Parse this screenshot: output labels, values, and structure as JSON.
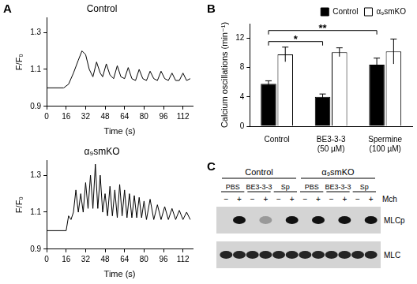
{
  "panel_labels": [
    "A",
    "B",
    "C"
  ],
  "chart_data": [
    {
      "type": "line",
      "title": "Control",
      "x_label": "Time (s)",
      "y_label": "F/F₀",
      "x": [
        0,
        14,
        18,
        22,
        26,
        29,
        32,
        35,
        38,
        41,
        44,
        46,
        49,
        52,
        55,
        58,
        61,
        64,
        67,
        70,
        73,
        76,
        79,
        82,
        85,
        88,
        91,
        94,
        97,
        100,
        103,
        106,
        109,
        112,
        115,
        118
      ],
      "series": [
        {
          "color": "#000000",
          "values": [
            1.0,
            1.0,
            1.02,
            1.08,
            1.15,
            1.2,
            1.18,
            1.1,
            1.06,
            1.14,
            1.08,
            1.06,
            1.13,
            1.07,
            1.05,
            1.12,
            1.06,
            1.05,
            1.11,
            1.05,
            1.04,
            1.1,
            1.05,
            1.04,
            1.09,
            1.05,
            1.04,
            1.09,
            1.05,
            1.04,
            1.08,
            1.04,
            1.04,
            1.08,
            1.04,
            1.05
          ]
        }
      ],
      "xlim": [
        0,
        120
      ],
      "xticks": [
        0,
        16,
        32,
        48,
        64,
        80,
        96,
        112
      ],
      "ylim": [
        0.9,
        1.38
      ],
      "yticks": [
        0.9,
        1.1,
        1.3
      ],
      "grid": false
    },
    {
      "type": "line",
      "title": "α₉smKO",
      "x_label": "Time (s)",
      "y_label": "F/F₀",
      "x": [
        0,
        16,
        18,
        20,
        22,
        24,
        26,
        28,
        30,
        32,
        34,
        36,
        38,
        40,
        42,
        44,
        46,
        48,
        50,
        52,
        54,
        56,
        58,
        60,
        62,
        64,
        66,
        68,
        70,
        72,
        74,
        76,
        78,
        80,
        82,
        85,
        88,
        91,
        94,
        97,
        100,
        103,
        106,
        109,
        112,
        115,
        118
      ],
      "series": [
        {
          "color": "#000000",
          "values": [
            1.0,
            1.0,
            1.08,
            1.06,
            1.1,
            1.22,
            1.1,
            1.2,
            1.1,
            1.26,
            1.12,
            1.3,
            1.12,
            1.36,
            1.12,
            1.3,
            1.1,
            1.2,
            1.08,
            1.24,
            1.08,
            1.22,
            1.07,
            1.25,
            1.08,
            1.22,
            1.07,
            1.2,
            1.07,
            1.19,
            1.07,
            1.18,
            1.07,
            1.16,
            1.06,
            1.17,
            1.06,
            1.14,
            1.06,
            1.13,
            1.06,
            1.12,
            1.06,
            1.11,
            1.06,
            1.1,
            1.06
          ]
        }
      ],
      "xlim": [
        0,
        120
      ],
      "xticks": [
        0,
        16,
        32,
        48,
        64,
        80,
        96,
        112
      ],
      "ylim": [
        0.9,
        1.38
      ],
      "yticks": [
        0.9,
        1.1,
        1.3
      ],
      "grid": false
    },
    {
      "type": "bar",
      "y_label": "Calcium oscillations (min⁻¹)",
      "categories": [
        "Control",
        "BE3-3-3\n(50 µM)",
        "Spermine\n(100 µM)"
      ],
      "series": [
        {
          "name": "Control",
          "color": "#000000",
          "values": [
            5.8,
            4.0,
            8.4
          ],
          "errors": [
            0.4,
            0.4,
            0.9
          ]
        },
        {
          "name": "α₉smKO",
          "color": "#ffffff",
          "values": [
            9.8,
            10.1,
            10.2
          ],
          "errors": [
            1.0,
            0.6,
            1.7
          ]
        }
      ],
      "ylim": [
        0,
        14
      ],
      "yticks": [
        0,
        4,
        8,
        12
      ],
      "grid": false,
      "legend": "top-right",
      "annotations": [
        {
          "text": "*",
          "series": "Control",
          "from": "Control",
          "to": "BE3-3-3\n(50 µM)"
        },
        {
          "text": "**",
          "series": "Control",
          "from": "Control",
          "to": "Spermine\n(100 µM)"
        }
      ]
    }
  ],
  "blot": {
    "groups": [
      "Control",
      "α₉smKO"
    ],
    "treatments": [
      "PBS",
      "BE3-3-3",
      "Sp"
    ],
    "mch": [
      "−",
      "+"
    ],
    "mch_label": "Mch",
    "rows": [
      {
        "name": "MLCp",
        "bands": [
          0,
          1,
          0,
          0.3,
          0,
          1,
          0,
          1,
          0,
          1,
          0,
          1
        ]
      },
      {
        "name": "MLC",
        "bands": [
          0.9,
          0.9,
          0.9,
          0.9,
          0.9,
          0.9,
          0.9,
          0.9,
          0.9,
          0.9,
          0.9,
          0.9
        ]
      }
    ]
  }
}
